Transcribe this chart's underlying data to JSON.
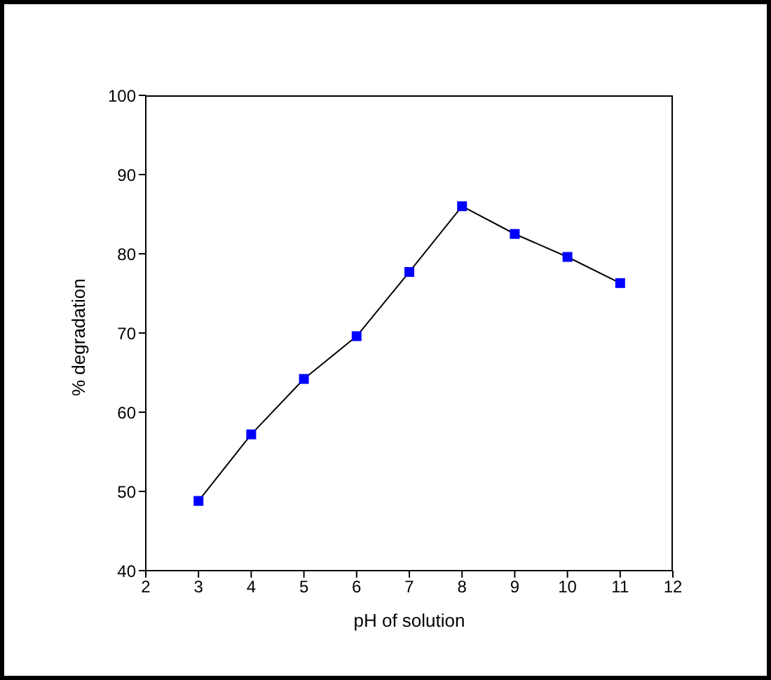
{
  "chart_data": {
    "type": "line",
    "xlabel": "pH of solution",
    "ylabel": "% degradation",
    "x": [
      3,
      4,
      5,
      6,
      7,
      8,
      9,
      10,
      11
    ],
    "series": [
      {
        "color": "#000000",
        "colors": [
          "#0000ff",
          "#0000ff",
          "#0000ff",
          "#0000ff",
          "#0000ff",
          "#0000ff",
          "#0000ff",
          "#0000ff",
          "#0000ff"
        ],
        "values": [
          48.8,
          57.2,
          64.2,
          69.6,
          77.7,
          86.0,
          82.5,
          79.6,
          76.3
        ]
      }
    ],
    "marker": "square",
    "line_style": "solid",
    "xlim": [
      2,
      12
    ],
    "xticks": [
      2,
      3,
      4,
      5,
      6,
      7,
      8,
      9,
      10,
      11,
      12
    ],
    "ylim": [
      40,
      100
    ],
    "yticks": [
      40,
      50,
      60,
      70,
      80,
      90,
      100
    ],
    "grid": false
  }
}
